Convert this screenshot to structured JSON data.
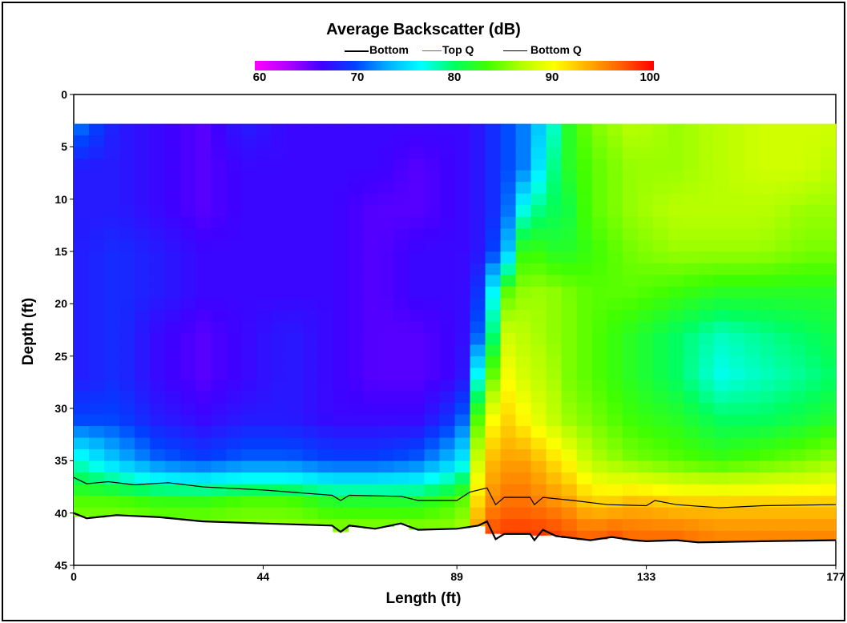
{
  "chart_data": {
    "type": "heatmap",
    "title": "Average Backscatter (dB)",
    "xlabel": "Length (ft)",
    "ylabel": "Depth (ft)",
    "x_ticks": [
      "0",
      "44",
      "89",
      "133",
      "177"
    ],
    "y_ticks": [
      "0",
      "5",
      "10",
      "15",
      "20",
      "25",
      "30",
      "35",
      "40",
      "45"
    ],
    "xlim": [
      0,
      177
    ],
    "ylim": [
      0,
      45
    ],
    "y_inverted": true,
    "colorbar": {
      "min": 60,
      "max": 100,
      "tick_labels": [
        "60",
        "70",
        "80",
        "90",
        "100"
      ],
      "colors": [
        "#ff00ff",
        "#b000ff",
        "#4000ff",
        "#0040ff",
        "#00b0ff",
        "#00ffff",
        "#00ff60",
        "#40ff00",
        "#b0ff00",
        "#ffff00",
        "#ffb000",
        "#ff6000",
        "#ff0000"
      ]
    },
    "legend": [
      {
        "name": "Bottom",
        "color": "#000000"
      },
      {
        "name": "Top Q",
        "color": "#ff00ff"
      },
      {
        "name": "Bottom Q",
        "color": "#000000"
      }
    ],
    "data_top_depth": 2.8,
    "x": [
      0,
      10,
      20,
      30,
      40,
      50,
      60,
      70,
      80,
      90,
      95,
      100,
      105,
      110,
      115,
      120,
      125,
      130,
      140,
      150,
      160,
      170,
      177
    ],
    "depths": [
      3,
      7,
      11,
      15,
      19,
      23,
      27,
      31,
      35,
      39,
      42
    ],
    "values": [
      [
        72,
        68,
        67,
        66,
        68,
        67,
        67,
        67,
        67,
        67,
        68,
        70,
        72,
        76,
        82,
        85,
        86,
        87,
        86,
        87,
        88,
        88,
        88
      ],
      [
        68,
        68,
        67,
        66,
        67,
        67,
        67,
        67,
        66,
        67,
        68,
        70,
        72,
        78,
        82,
        84,
        85,
        86,
        86,
        87,
        88,
        88,
        87
      ],
      [
        68,
        68,
        67,
        66,
        67,
        67,
        67,
        66,
        66,
        67,
        68,
        70,
        78,
        80,
        81,
        84,
        85,
        86,
        87,
        87,
        87,
        86,
        86
      ],
      [
        68,
        69,
        68,
        67,
        67,
        67,
        67,
        66,
        67,
        67,
        68,
        72,
        84,
        82,
        82,
        83,
        84,
        85,
        86,
        86,
        86,
        85,
        85
      ],
      [
        68,
        69,
        68,
        67,
        67,
        67,
        67,
        66,
        67,
        67,
        70,
        84,
        86,
        86,
        85,
        84,
        84,
        84,
        83,
        82,
        82,
        82,
        82
      ],
      [
        68,
        69,
        67,
        66,
        67,
        68,
        67,
        66,
        66,
        67,
        72,
        88,
        87,
        86,
        85,
        84,
        83,
        82,
        80,
        78,
        79,
        80,
        81
      ],
      [
        68,
        69,
        67,
        66,
        67,
        68,
        67,
        66,
        66,
        67,
        80,
        90,
        88,
        87,
        85,
        84,
        83,
        82,
        80,
        77,
        78,
        79,
        80
      ],
      [
        70,
        70,
        68,
        67,
        68,
        68,
        67,
        67,
        67,
        70,
        88,
        92,
        90,
        88,
        86,
        85,
        84,
        83,
        82,
        80,
        80,
        81,
        82
      ],
      [
        78,
        74,
        71,
        70,
        71,
        71,
        70,
        70,
        71,
        75,
        92,
        94,
        94,
        92,
        90,
        87,
        86,
        85,
        84,
        83,
        84,
        85,
        86
      ],
      [
        84,
        84,
        83,
        83,
        84,
        84,
        82,
        82,
        82,
        84,
        94,
        96,
        96,
        95,
        94,
        92,
        92,
        93,
        92,
        92,
        92,
        92,
        92
      ],
      [
        86,
        86,
        86,
        86,
        86,
        86,
        86,
        86,
        86,
        86,
        97,
        98,
        98,
        98,
        97,
        96,
        97,
        96,
        96,
        95,
        95,
        95,
        95
      ]
    ],
    "bottom_line": [
      [
        0,
        40.0
      ],
      [
        3,
        40.5
      ],
      [
        10,
        40.2
      ],
      [
        20,
        40.4
      ],
      [
        30,
        40.8
      ],
      [
        44,
        41.0
      ],
      [
        60,
        41.2
      ],
      [
        62,
        41.8
      ],
      [
        64,
        41.2
      ],
      [
        70,
        41.5
      ],
      [
        76,
        41.0
      ],
      [
        80,
        41.6
      ],
      [
        89,
        41.5
      ],
      [
        94,
        41.2
      ],
      [
        96,
        40.8
      ],
      [
        98,
        42.5
      ],
      [
        100,
        42.0
      ],
      [
        106,
        42.0
      ],
      [
        107,
        42.6
      ],
      [
        109,
        41.6
      ],
      [
        112,
        42.2
      ],
      [
        120,
        42.6
      ],
      [
        125,
        42.3
      ],
      [
        130,
        42.6
      ],
      [
        133,
        42.7
      ],
      [
        140,
        42.6
      ],
      [
        145,
        42.8
      ],
      [
        160,
        42.7
      ],
      [
        177,
        42.6
      ]
    ],
    "bottom_q_line": [
      [
        0,
        36.6
      ],
      [
        3,
        37.2
      ],
      [
        8,
        37.0
      ],
      [
        14,
        37.3
      ],
      [
        22,
        37.1
      ],
      [
        30,
        37.5
      ],
      [
        44,
        37.8
      ],
      [
        60,
        38.3
      ],
      [
        62,
        38.8
      ],
      [
        64,
        38.3
      ],
      [
        76,
        38.4
      ],
      [
        80,
        38.8
      ],
      [
        89,
        38.8
      ],
      [
        92,
        38.0
      ],
      [
        96,
        37.6
      ],
      [
        98,
        39.2
      ],
      [
        100,
        38.5
      ],
      [
        106,
        38.5
      ],
      [
        107,
        39.2
      ],
      [
        109,
        38.5
      ],
      [
        116,
        38.8
      ],
      [
        124,
        39.2
      ],
      [
        133,
        39.3
      ],
      [
        135,
        38.8
      ],
      [
        140,
        39.2
      ],
      [
        150,
        39.5
      ],
      [
        160,
        39.3
      ],
      [
        177,
        39.2
      ]
    ]
  }
}
